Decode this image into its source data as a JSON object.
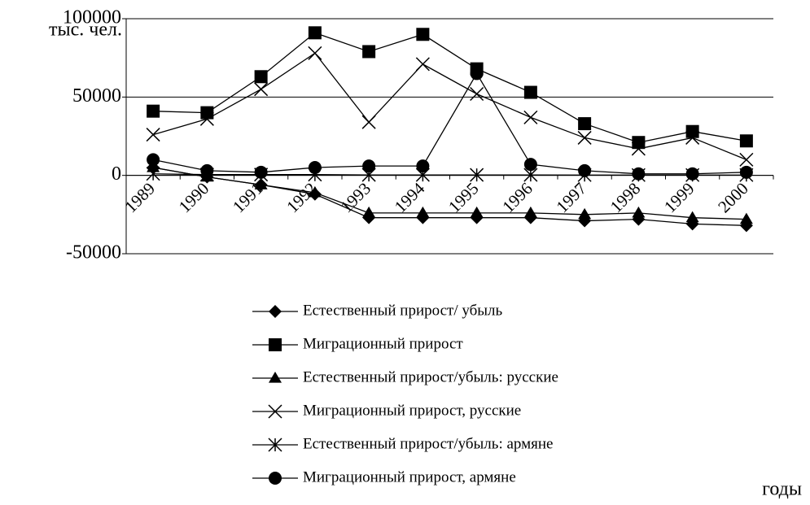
{
  "chart_data": {
    "type": "line",
    "y_label": "тыс. чел.",
    "x_label": "годы",
    "categories": [
      "1989",
      "1990",
      "1991",
      "1992",
      "1993",
      "1994",
      "1995",
      "1996",
      "1997",
      "1998",
      "1999",
      "2000"
    ],
    "ylim": [
      -50000,
      100000
    ],
    "yticks": [
      -50000,
      0,
      50000,
      100000
    ],
    "grid": true,
    "legend": "bottom",
    "series": [
      {
        "name": "Естественный прирост/ убыль",
        "color": "#000000",
        "marker": "diamond",
        "values": [
          5000,
          -1000,
          -6000,
          -12000,
          -27000,
          -27000,
          -27000,
          -27000,
          -29000,
          -28000,
          -31000,
          -32000
        ]
      },
      {
        "name": "Миграционный прирост",
        "color": "#000000",
        "marker": "square",
        "values": [
          41000,
          40000,
          63000,
          91000,
          79000,
          90000,
          68000,
          53000,
          33000,
          21000,
          28000,
          22000
        ]
      },
      {
        "name": "Естественный прирост/убыль: русские",
        "color": "#000000",
        "marker": "triangle",
        "values": [
          5000,
          -1000,
          -6000,
          -11000,
          -24000,
          -24000,
          -24000,
          -24000,
          -25000,
          -24000,
          -27000,
          -28000
        ]
      },
      {
        "name": "Миграционный прирост, русские",
        "color": "#000000",
        "marker": "x",
        "values": [
          26000,
          36000,
          55000,
          78000,
          34000,
          71000,
          52000,
          37000,
          24000,
          17000,
          24000,
          10000
        ]
      },
      {
        "name": "Естественный прирост/убыль: армяне",
        "color": "#000000",
        "marker": "asterisk",
        "values": [
          1000,
          500,
          500,
          500,
          300,
          300,
          300,
          300,
          200,
          200,
          200,
          200
        ]
      },
      {
        "name": "Миграционный прирост, армяне",
        "color": "#000000",
        "marker": "circle",
        "values": [
          10000,
          3000,
          2000,
          5000,
          6000,
          6000,
          65000,
          7000,
          3000,
          1000,
          1000,
          2000
        ]
      }
    ]
  }
}
